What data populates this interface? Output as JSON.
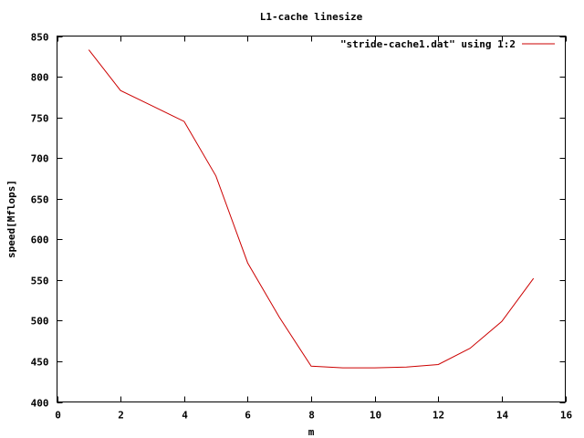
{
  "chart_data": {
    "type": "line",
    "title": "L1-cache linesize",
    "xlabel": "m",
    "ylabel": "speed[Mflops]",
    "xlim": [
      0,
      16
    ],
    "ylim": [
      400,
      850
    ],
    "xticks": [
      0,
      2,
      4,
      6,
      8,
      10,
      12,
      14,
      16
    ],
    "yticks": [
      400,
      450,
      500,
      550,
      600,
      650,
      700,
      750,
      800,
      850
    ],
    "grid": false,
    "legend_position": "top-right",
    "series": [
      {
        "name": "\"stride-cache1.dat\" using 1:2",
        "color": "#cc0000",
        "x": [
          1,
          2,
          3,
          4,
          5,
          6,
          7,
          8,
          9,
          10,
          11,
          12,
          13,
          14,
          15
        ],
        "y": [
          833,
          783,
          764,
          745,
          678,
          571,
          504,
          444,
          442,
          442,
          443,
          446,
          466,
          499,
          552
        ]
      }
    ]
  }
}
